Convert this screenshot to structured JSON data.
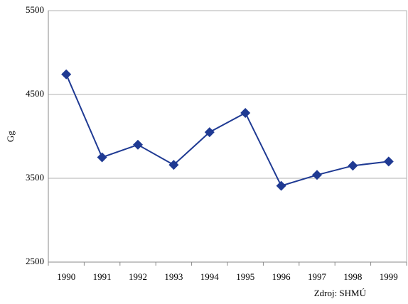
{
  "chart_data": {
    "type": "line",
    "ylabel": "Gg",
    "source": "Zdroj: SHMÚ",
    "categories": [
      "1990",
      "1991",
      "1992",
      "1993",
      "1994",
      "1995",
      "1996",
      "1997",
      "1998",
      "1999"
    ],
    "values": [
      4740,
      3750,
      3900,
      3660,
      4050,
      4280,
      3410,
      3540,
      3650,
      3700
    ],
    "color": "#1f3a93",
    "ylim": [
      2500,
      5500
    ],
    "yticks": [
      2500,
      3500,
      4500,
      5500
    ],
    "grid": true
  }
}
